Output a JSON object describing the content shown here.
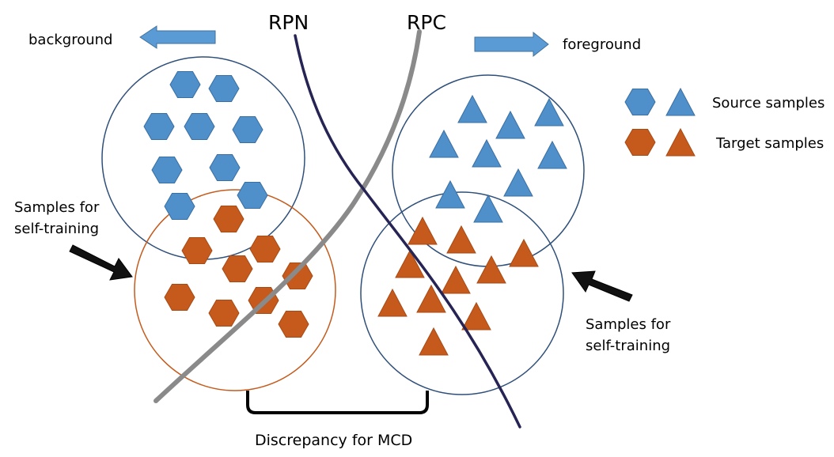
{
  "labels": {
    "rpn": "RPN",
    "rpc": "RPC",
    "background": "background",
    "foreground": "foreground",
    "left_samples_line1": "Samples for",
    "left_samples_line2": "self-training",
    "right_samples_line1": "Samples for",
    "right_samples_line2": "self-training",
    "discrepancy": "Discrepancy for MCD"
  },
  "legend": {
    "source": "Source samples",
    "target": "Target samples"
  },
  "colors": {
    "source": "#4f8fca",
    "target": "#c55a1c",
    "rpn_line": "#262454",
    "rpc_line": "#8a8a8a",
    "circle_source": "#2e4f7a",
    "circle_target": "#c55a1c",
    "arrow_blue": "#5b9bd5"
  }
}
